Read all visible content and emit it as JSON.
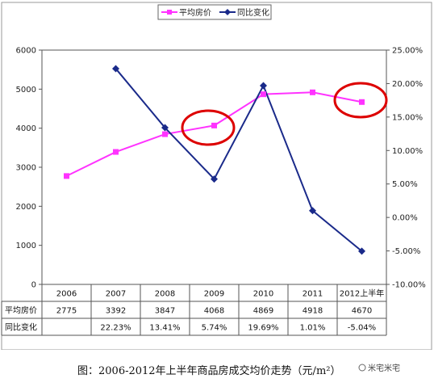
{
  "chart_data": {
    "type": "line",
    "categories": [
      "2006",
      "2007",
      "2008",
      "2009",
      "2010",
      "2011",
      "2012上半年"
    ],
    "series": [
      {
        "name": "平均房价",
        "axis": "left",
        "color": "#ff33ff",
        "values": [
          2775,
          3392,
          3847,
          4068,
          4869,
          4918,
          4670
        ]
      },
      {
        "name": "同比变化",
        "axis": "right",
        "color": "#1a2a8a",
        "values": [
          null,
          22.23,
          13.41,
          5.74,
          19.69,
          1.01,
          -5.04
        ]
      }
    ],
    "y_left": {
      "min": 0,
      "max": 6000,
      "ticks": [
        "0",
        "1000",
        "2000",
        "3000",
        "4000",
        "5000",
        "6000"
      ]
    },
    "y_right": {
      "min": -10,
      "max": 25,
      "ticks": [
        "-10.00%",
        "-5.00%",
        "0.00%",
        "5.00%",
        "10.00%",
        "15.00%",
        "20.00%",
        "25.00%"
      ]
    },
    "legend": {
      "position": "top",
      "items": [
        "平均房价",
        "同比变化"
      ]
    },
    "table": {
      "rows": [
        {
          "label": "平均房价",
          "values": [
            "2775",
            "3392",
            "3847",
            "4068",
            "4869",
            "4918",
            "4670"
          ]
        },
        {
          "label": "同比变化",
          "values": [
            "",
            "22.23%",
            "13.41%",
            "5.74%",
            "19.69%",
            "1.01%",
            "-5.04%"
          ]
        }
      ]
    },
    "highlight_color": "#dd0000",
    "grid": false
  },
  "caption": "图：2006-2012年上半年商品房成交均价走势（元/m²）",
  "watermark": "米宅米宅"
}
